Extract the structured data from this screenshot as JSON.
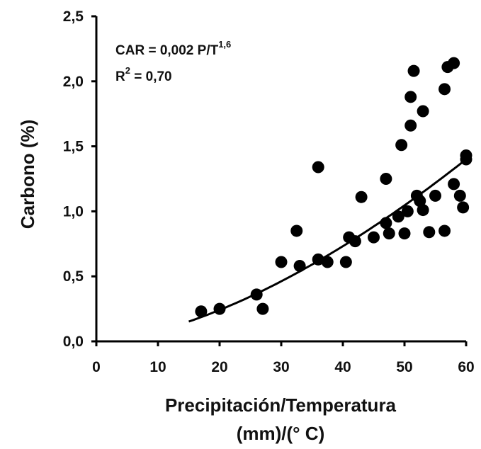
{
  "chart_data": {
    "type": "scatter",
    "xlabel_line1": "Precipitación/Temperatura",
    "xlabel_line2": "(mm)/(° C)",
    "ylabel": "Carbono (%)",
    "xlim": [
      0,
      60
    ],
    "ylim": [
      0,
      2.5
    ],
    "x_ticks": [
      0,
      10,
      20,
      30,
      40,
      50,
      60
    ],
    "x_tick_labels": [
      "0",
      "10",
      "20",
      "30",
      "40",
      "50",
      "60"
    ],
    "y_ticks": [
      0,
      0.5,
      1.0,
      1.5,
      2.0,
      2.5
    ],
    "y_tick_labels": [
      "0,0",
      "0,5",
      "1,0",
      "1,5",
      "2,0",
      "2,5"
    ],
    "grid": false,
    "annotations": {
      "equation_prefix": "CAR = 0,002 P/T",
      "equation_exponent": "1,6",
      "r2_prefix": "R",
      "r2_superscript": "2",
      "r2_suffix": " = 0,70"
    },
    "points": [
      {
        "x": 17,
        "y": 0.23
      },
      {
        "x": 20,
        "y": 0.25
      },
      {
        "x": 26,
        "y": 0.36
      },
      {
        "x": 27,
        "y": 0.25
      },
      {
        "x": 30,
        "y": 0.61
      },
      {
        "x": 32.5,
        "y": 0.85
      },
      {
        "x": 33,
        "y": 0.58
      },
      {
        "x": 36,
        "y": 1.34
      },
      {
        "x": 36,
        "y": 0.63
      },
      {
        "x": 37.5,
        "y": 0.61
      },
      {
        "x": 40.5,
        "y": 0.61
      },
      {
        "x": 41,
        "y": 0.8
      },
      {
        "x": 42,
        "y": 0.77
      },
      {
        "x": 43,
        "y": 1.11
      },
      {
        "x": 45,
        "y": 0.8
      },
      {
        "x": 47,
        "y": 1.25
      },
      {
        "x": 47,
        "y": 0.91
      },
      {
        "x": 47.5,
        "y": 0.83
      },
      {
        "x": 49,
        "y": 0.96
      },
      {
        "x": 49.5,
        "y": 1.51
      },
      {
        "x": 50,
        "y": 0.83
      },
      {
        "x": 50.5,
        "y": 1.0
      },
      {
        "x": 51,
        "y": 1.66
      },
      {
        "x": 51,
        "y": 1.88
      },
      {
        "x": 51.5,
        "y": 2.08
      },
      {
        "x": 52,
        "y": 1.12
      },
      {
        "x": 52.5,
        "y": 1.08
      },
      {
        "x": 53,
        "y": 1.77
      },
      {
        "x": 53,
        "y": 1.01
      },
      {
        "x": 54,
        "y": 0.84
      },
      {
        "x": 55,
        "y": 1.12
      },
      {
        "x": 56.5,
        "y": 1.94
      },
      {
        "x": 56.5,
        "y": 0.85
      },
      {
        "x": 57,
        "y": 2.11
      },
      {
        "x": 58,
        "y": 1.21
      },
      {
        "x": 58,
        "y": 2.14
      },
      {
        "x": 59,
        "y": 1.12
      },
      {
        "x": 59.5,
        "y": 1.03
      },
      {
        "x": 60,
        "y": 1.43
      },
      {
        "x": 60,
        "y": 1.4
      }
    ],
    "trendline": {
      "coefficient": 0.002,
      "exponent": 1.6,
      "x_range": [
        15,
        60
      ]
    }
  }
}
